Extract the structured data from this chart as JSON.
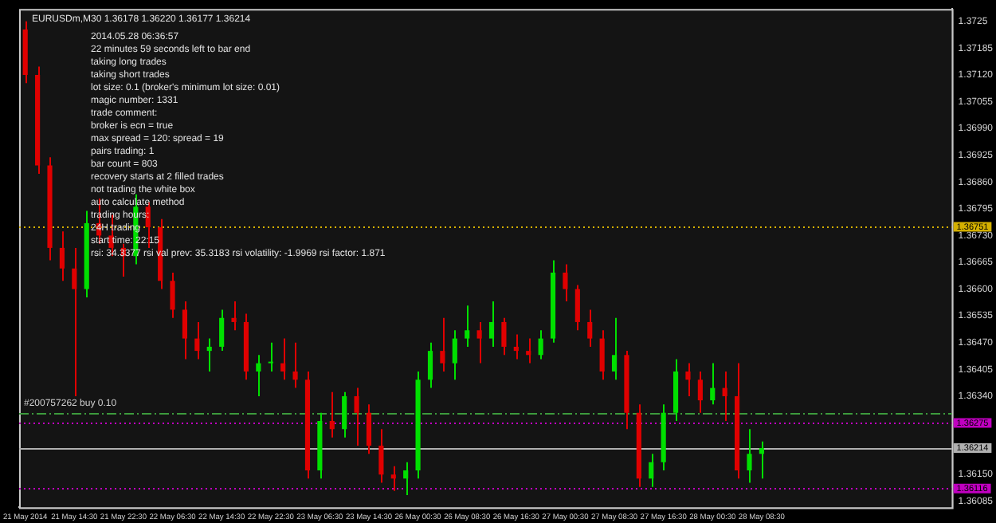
{
  "chart_data": {
    "type": "candlestick",
    "title": "EURUSDm,M30 1.36178 1.36220 1.36177 1.36214",
    "categories": [
      "21 May 2014",
      null,
      null,
      null,
      "21 May 14:30",
      null,
      null,
      null,
      "21 May 22:30",
      null,
      null,
      null,
      "22 May 06:30",
      null,
      null,
      null,
      "22 May 14:30",
      null,
      null,
      null,
      "22 May 22:30",
      null,
      null,
      null,
      "23 May 06:30",
      null,
      null,
      null,
      "23 May 14:30",
      null,
      null,
      null,
      "26 May 00:30",
      null,
      null,
      null,
      "26 May 08:30",
      null,
      null,
      null,
      "26 May 16:30",
      null,
      null,
      null,
      "27 May 00:30",
      null,
      null,
      null,
      "27 May 08:30",
      null,
      null,
      null,
      "27 May 16:30",
      null,
      null,
      null,
      "28 May 00:30",
      null,
      null,
      null,
      "28 May 08:30",
      null,
      null,
      null,
      null,
      null,
      null,
      null,
      null,
      null,
      null,
      null,
      null,
      null,
      null,
      null
    ],
    "ohlc": [
      [
        1.3723,
        1.3725,
        1.371,
        1.3712
      ],
      [
        1.3712,
        1.3714,
        1.3688,
        1.369
      ],
      [
        1.369,
        1.3692,
        1.3667,
        1.367
      ],
      [
        1.367,
        1.3674,
        1.3662,
        1.3665
      ],
      [
        1.3665,
        1.367,
        1.3634,
        1.366
      ],
      [
        1.366,
        1.3679,
        1.3658,
        1.3676
      ],
      [
        1.3676,
        1.3682,
        1.3671,
        1.3673
      ],
      [
        1.3673,
        1.3678,
        1.3668,
        1.367
      ],
      [
        1.367,
        1.3671,
        1.3663,
        1.3668
      ],
      [
        1.3668,
        1.3683,
        1.3666,
        1.368
      ],
      [
        1.368,
        1.3681,
        1.367,
        1.3675
      ],
      [
        1.3675,
        1.3677,
        1.366,
        1.3662
      ],
      [
        1.3662,
        1.3664,
        1.3653,
        1.3655
      ],
      [
        1.3655,
        1.3657,
        1.3643,
        1.3648
      ],
      [
        1.3648,
        1.3652,
        1.3643,
        1.3645
      ],
      [
        1.3645,
        1.3648,
        1.364,
        1.3646
      ],
      [
        1.3646,
        1.3655,
        1.3645,
        1.3653
      ],
      [
        1.3653,
        1.3657,
        1.365,
        1.3652
      ],
      [
        1.3652,
        1.3654,
        1.3638,
        1.364
      ],
      [
        1.364,
        1.3644,
        1.3634,
        1.3642
      ],
      [
        1.3642,
        1.3647,
        1.364,
        1.3642
      ],
      [
        1.3642,
        1.3648,
        1.3638,
        1.364
      ],
      [
        1.364,
        1.3647,
        1.3636,
        1.3638
      ],
      [
        1.3638,
        1.364,
        1.3614,
        1.3616
      ],
      [
        1.3616,
        1.363,
        1.3614,
        1.3628
      ],
      [
        1.3628,
        1.3635,
        1.3624,
        1.3626
      ],
      [
        1.3626,
        1.3635,
        1.3624,
        1.3634
      ],
      [
        1.3634,
        1.3636,
        1.3622,
        1.363
      ],
      [
        1.363,
        1.3632,
        1.362,
        1.3622
      ],
      [
        1.3622,
        1.3626,
        1.3613,
        1.3615
      ],
      [
        1.3615,
        1.3617,
        1.3611,
        1.3614
      ],
      [
        1.3614,
        1.3618,
        1.361,
        1.3616
      ],
      [
        1.3616,
        1.364,
        1.3614,
        1.3638
      ],
      [
        1.3638,
        1.3647,
        1.3636,
        1.3645
      ],
      [
        1.3645,
        1.3653,
        1.364,
        1.3642
      ],
      [
        1.3642,
        1.365,
        1.3638,
        1.3648
      ],
      [
        1.3648,
        1.3656,
        1.3646,
        1.365
      ],
      [
        1.365,
        1.3652,
        1.3642,
        1.3648
      ],
      [
        1.3648,
        1.3657,
        1.3646,
        1.3652
      ],
      [
        1.3652,
        1.3653,
        1.3644,
        1.3646
      ],
      [
        1.3646,
        1.3649,
        1.3643,
        1.3645
      ],
      [
        1.3645,
        1.3648,
        1.3642,
        1.3644
      ],
      [
        1.3644,
        1.365,
        1.3643,
        1.3648
      ],
      [
        1.3648,
        1.3667,
        1.3647,
        1.3664
      ],
      [
        1.3664,
        1.3666,
        1.3657,
        1.366
      ],
      [
        1.366,
        1.3661,
        1.365,
        1.3652
      ],
      [
        1.3652,
        1.3655,
        1.3646,
        1.3648
      ],
      [
        1.3648,
        1.365,
        1.3638,
        1.364
      ],
      [
        1.364,
        1.3653,
        1.3638,
        1.3644
      ],
      [
        1.3644,
        1.3645,
        1.3626,
        1.363
      ],
      [
        1.363,
        1.3632,
        1.3612,
        1.3614
      ],
      [
        1.3614,
        1.362,
        1.3612,
        1.3618
      ],
      [
        1.3618,
        1.3632,
        1.3616,
        1.363
      ],
      [
        1.363,
        1.3643,
        1.3628,
        1.364
      ],
      [
        1.364,
        1.3642,
        1.3634,
        1.3638
      ],
      [
        1.3638,
        1.364,
        1.363,
        1.3633
      ],
      [
        1.3633,
        1.3642,
        1.3632,
        1.3636
      ],
      [
        1.3636,
        1.364,
        1.3628,
        1.3634
      ],
      [
        1.3634,
        1.3642,
        1.3614,
        1.3616
      ],
      [
        1.3616,
        1.3626,
        1.3613,
        1.362
      ],
      [
        1.362,
        1.3623,
        1.3614,
        1.36214
      ],
      null,
      null,
      null,
      null,
      null,
      null,
      null,
      null,
      null,
      null,
      null,
      null,
      null,
      null,
      null
    ],
    "ylim": [
      1.3607,
      1.3728
    ],
    "yticks": [
      1.3725,
      {
        "value": 1.37185,
        "label": "1.37185"
      },
      {
        "value": 1.3712,
        "label": "1.37120"
      },
      {
        "value": 1.37055,
        "label": "1.37055"
      },
      {
        "value": 1.3699,
        "label": "1.36990"
      },
      {
        "value": 1.36925,
        "label": "1.36925"
      },
      {
        "value": 1.3686,
        "label": "1.36860"
      },
      {
        "value": 1.36795,
        "label": "1.36795"
      },
      {
        "value": 1.3673,
        "label": "1.36730"
      },
      {
        "value": 1.36665,
        "label": "1.36665"
      },
      {
        "value": 1.366,
        "label": "1.36600"
      },
      {
        "value": 1.36535,
        "label": "1.36535"
      },
      {
        "value": 1.3647,
        "label": "1.36470"
      },
      {
        "value": 1.36405,
        "label": "1.36405"
      },
      {
        "value": 1.3634,
        "label": "1.36340"
      },
      {
        "value": 1.3615,
        "label": "1.36150"
      },
      {
        "value": 1.36085,
        "label": "1.36085"
      }
    ],
    "ref_lines": [
      {
        "axis": "y",
        "value": 1.36751,
        "label": "1.36751",
        "color": "#d4b000",
        "line_style": "dotted"
      },
      {
        "axis": "y",
        "value": 1.363,
        "label": "#200757262 buy 0.10",
        "color": "#3c9a3c",
        "line_style": "dashed"
      },
      {
        "axis": "y",
        "value": 1.36275,
        "label": "1.36275",
        "color": "#c000c0",
        "line_style": "dotted"
      },
      {
        "axis": "y",
        "value": 1.36214,
        "label": "1.36214",
        "color": "#b0b0b0",
        "line_style": "solid"
      },
      {
        "axis": "y",
        "value": 1.36116,
        "label": "1.36116",
        "color": "#c000c0",
        "line_style": "dotted"
      }
    ],
    "annotations": [
      "2014.05.28 06:36:57",
      "22 minutes 59 seconds left to bar end",
      "taking long trades",
      "taking short trades",
      "lot size: 0.1 (broker's minimum lot size: 0.01)",
      "magic number: 1331",
      "trade comment:",
      "broker is ecn = true",
      "max spread = 120: spread = 19",
      "pairs trading: 1",
      "bar count = 803",
      "recovery starts at 2 filled trades",
      "not trading the white box",
      "auto calculate method",
      "trading hours:",
      "24H trading",
      "start time: 22:15",
      "rsi: 34.3377 rsi val prev: 35.3183 rsi volatility: -1.9969 rsi factor: 1.871"
    ],
    "grid": false,
    "legend": false
  }
}
